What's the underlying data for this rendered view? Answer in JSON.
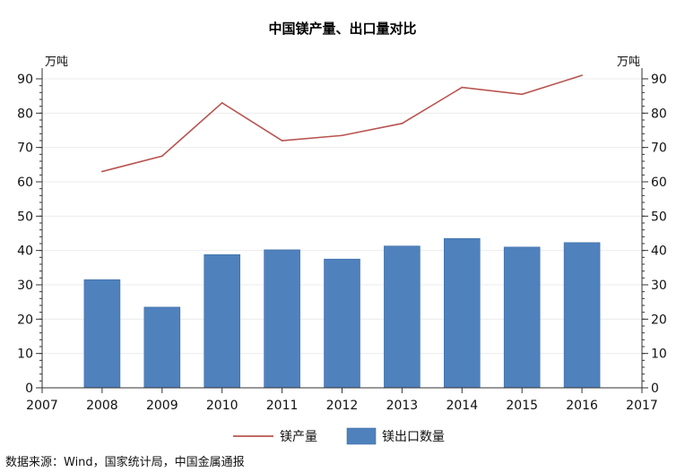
{
  "chart_data": {
    "type": "bar",
    "title": "中国镁产量、出口量对比",
    "x": [
      2007,
      2008,
      2009,
      2010,
      2011,
      2012,
      2013,
      2014,
      2015,
      2016,
      2017
    ],
    "series": [
      {
        "name": "镁产量",
        "type": "line",
        "axis": "right",
        "color": "#b85450",
        "x": [
          2008,
          2009,
          2010,
          2011,
          2012,
          2013,
          2014,
          2015,
          2016
        ],
        "values": [
          63,
          67.5,
          83,
          72,
          73.5,
          77,
          87.5,
          85.5,
          91
        ]
      },
      {
        "name": "镁出口数量",
        "type": "bar",
        "axis": "left",
        "color": "#4f81bd",
        "x": [
          2008,
          2009,
          2010,
          2011,
          2012,
          2013,
          2014,
          2015,
          2016
        ],
        "values": [
          31.5,
          23.5,
          38.8,
          40.2,
          37.5,
          41.3,
          43.5,
          41,
          42.3
        ]
      }
    ],
    "y_left": {
      "label": "万吨",
      "lim": [
        0,
        90
      ],
      "ticks": [
        0,
        10,
        20,
        30,
        40,
        50,
        60,
        70,
        80,
        90
      ]
    },
    "y_right": {
      "label": "万吨",
      "lim": [
        0,
        90
      ],
      "ticks": [
        0,
        10,
        20,
        30,
        40,
        50,
        60,
        70,
        80,
        90
      ]
    },
    "xlim": [
      2007,
      2017
    ],
    "grid": "horizontal",
    "legend": "bottom-center"
  },
  "footer": {
    "source": "数据来源：Wind，国家统计局，中国金属通报"
  }
}
